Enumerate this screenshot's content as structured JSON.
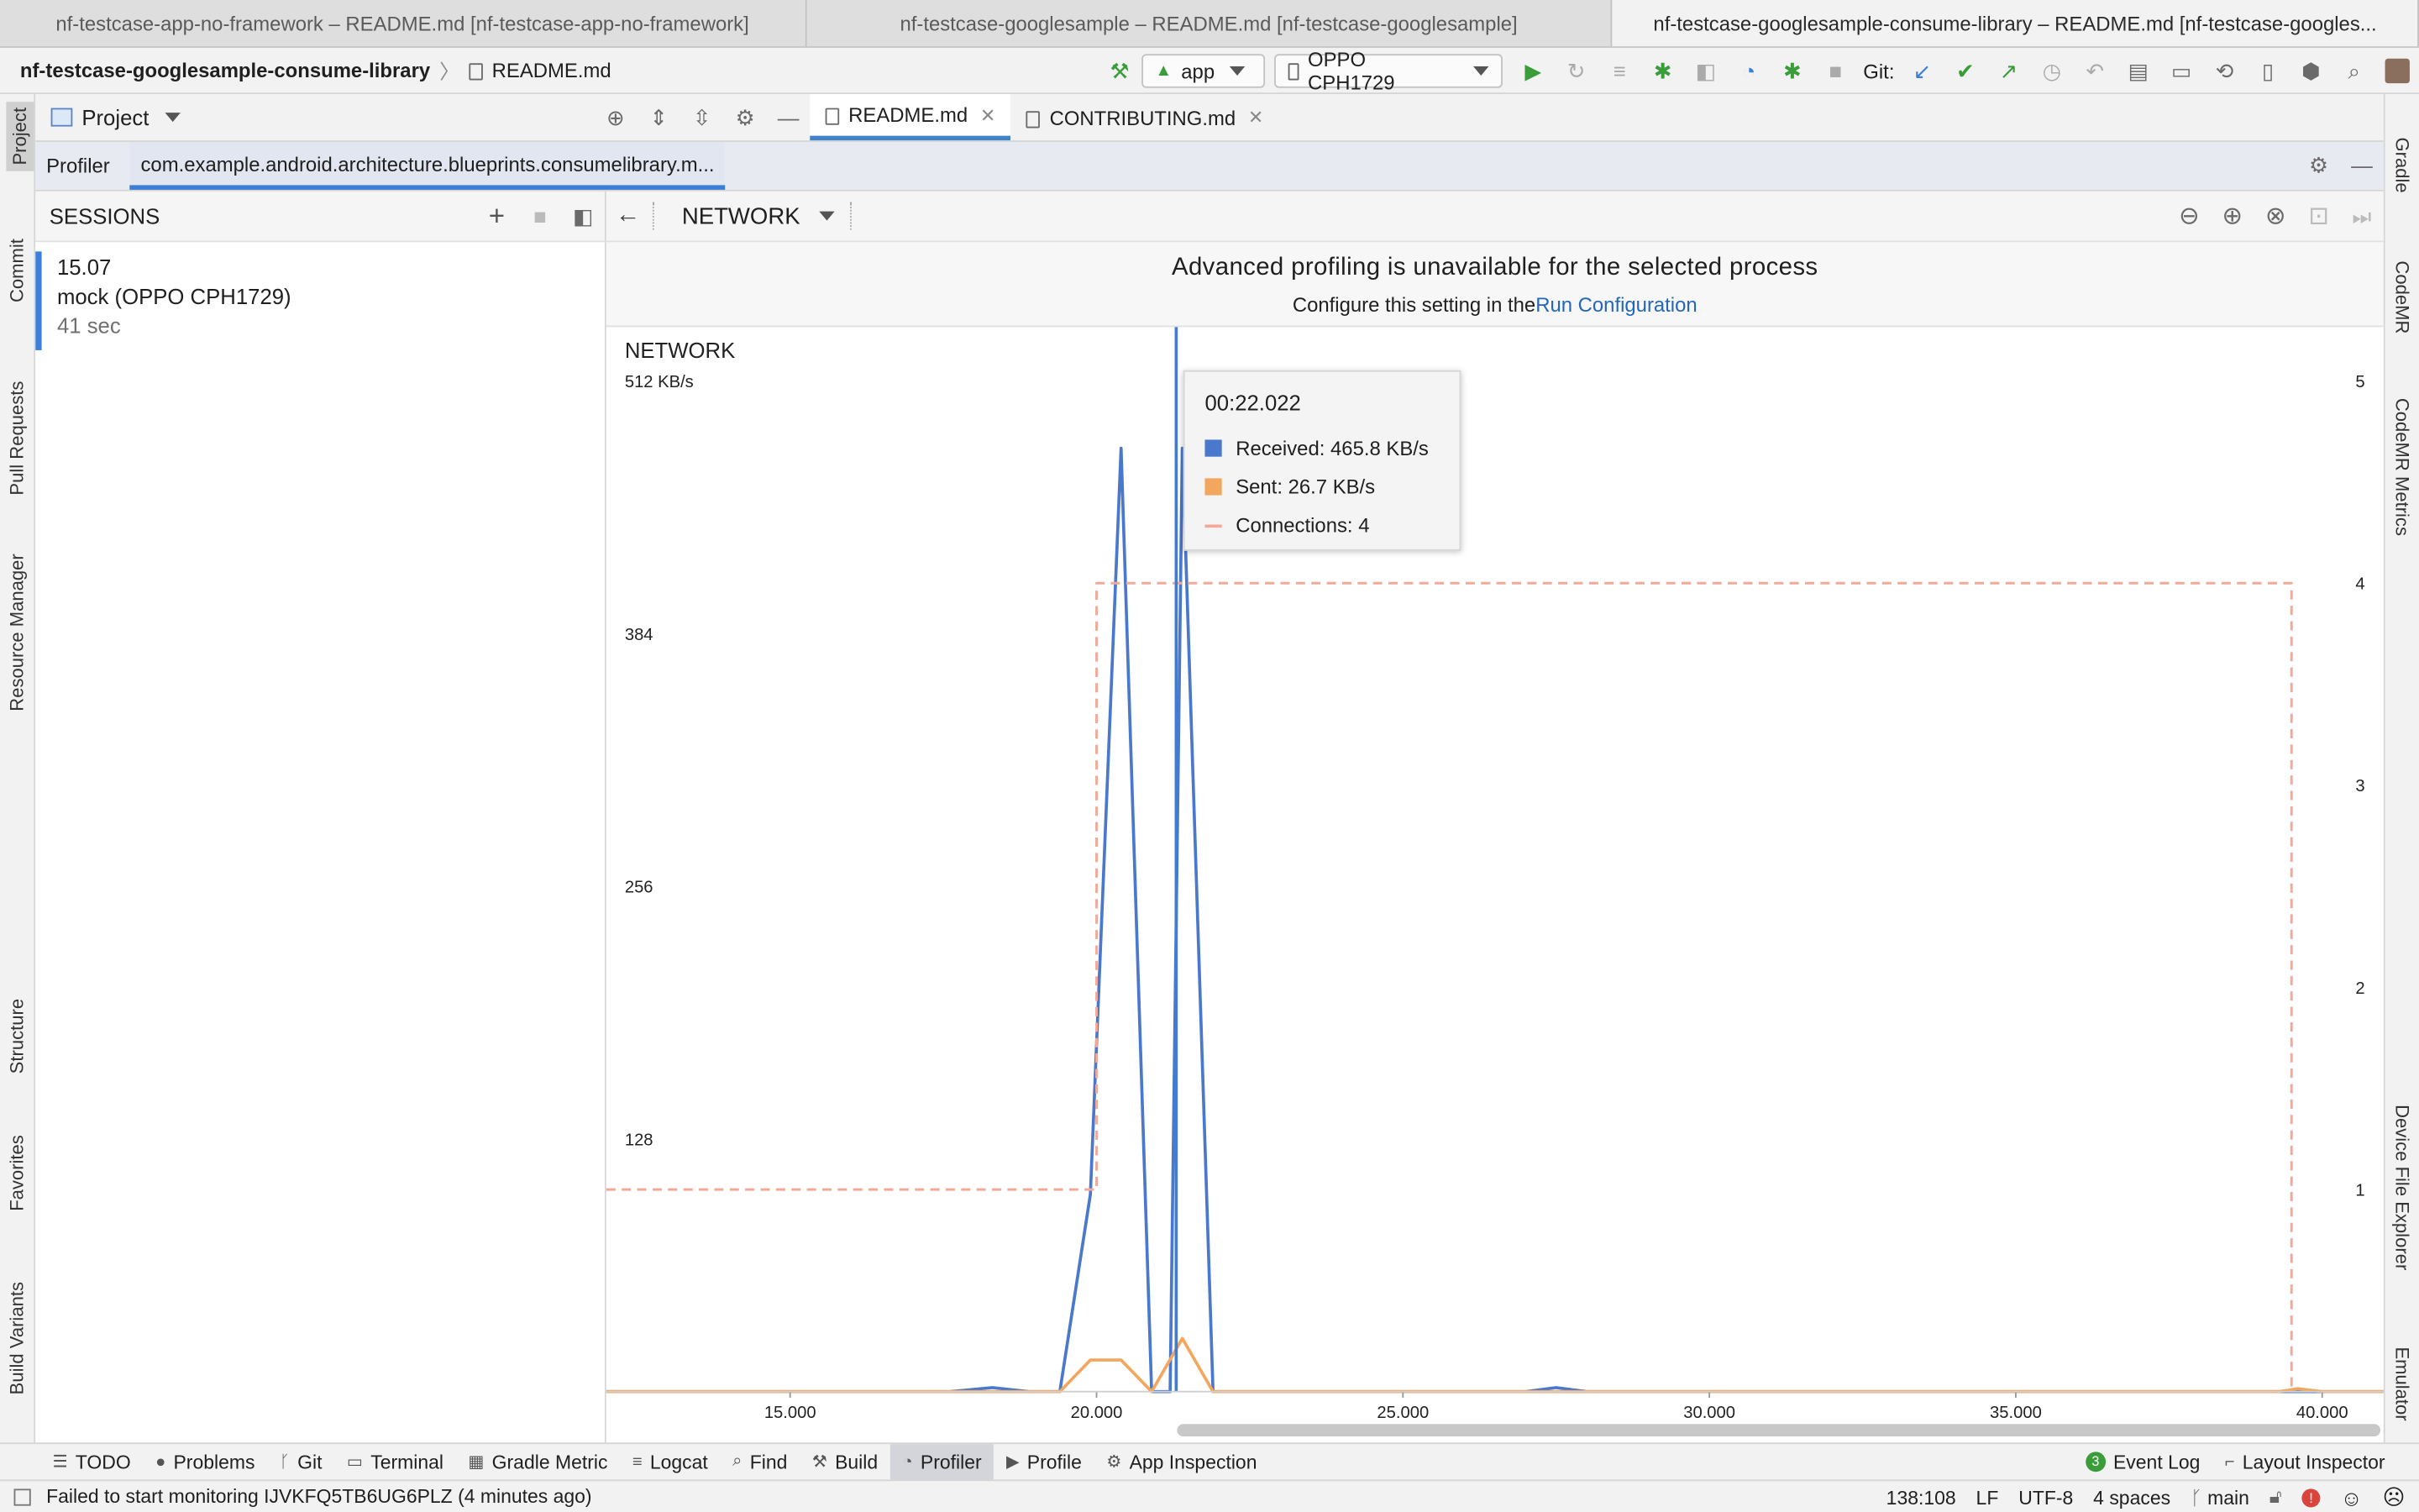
{
  "window_tabs": [
    "nf-testcase-app-no-framework – README.md [nf-testcase-app-no-framework]",
    "nf-testcase-googlesample – README.md [nf-testcase-googlesample]",
    "nf-testcase-googlesample-consume-library – README.md [nf-testcase-googles..."
  ],
  "toolbar": {
    "project_name": "nf-testcase-googlesample-consume-library",
    "file_name": "README.md",
    "run_config": "app",
    "device": "OPPO CPH1729",
    "git_label": "Git:"
  },
  "left_strip": [
    "Project",
    "Commit",
    "Pull Requests",
    "Resource Manager",
    "Structure",
    "Favorites",
    "Build Variants"
  ],
  "right_strip": [
    "Gradle",
    "CodeMR",
    "CodeMR Metrics",
    "Device File Explorer",
    "Emulator"
  ],
  "project_pane": {
    "title": "Project"
  },
  "editor_tabs": [
    {
      "label": "README.md",
      "active": true
    },
    {
      "label": "CONTRIBUTING.md",
      "active": false
    }
  ],
  "profiler": {
    "tab_label": "Profiler",
    "process_tab": "com.example.android.architecture.blueprints.consumelibrary.m...",
    "sessions_title": "SESSIONS",
    "session": {
      "time": "15.07",
      "name": "mock (OPPO CPH1729)",
      "duration": "41 sec"
    },
    "monitor_title": "NETWORK",
    "banner_title": "Advanced profiling is unavailable for the selected process",
    "banner_text": "Configure this setting in the",
    "banner_link": "Run Configuration"
  },
  "chart_data": {
    "type": "line",
    "title": "NETWORK",
    "unit_label": "512 KB/s",
    "y_ticks": [
      "384",
      "256",
      "128"
    ],
    "y_range_kbps": [
      0,
      512
    ],
    "y2_ticks": [
      "5",
      "4",
      "3",
      "2",
      "1"
    ],
    "y2_range": [
      0,
      5
    ],
    "x_ticks": [
      "15.000",
      "20.000",
      "25.000",
      "30.000",
      "35.000",
      "40.000"
    ],
    "x_range": [
      12.0,
      41.0
    ],
    "series": [
      {
        "name": "Received",
        "color": "#4a78cd",
        "points": [
          [
            12.0,
            0
          ],
          [
            17.6,
            0
          ],
          [
            18.3,
            2
          ],
          [
            18.9,
            0
          ],
          [
            19.4,
            0
          ],
          [
            19.9,
            100
          ],
          [
            20.4,
            478
          ],
          [
            20.9,
            0
          ],
          [
            21.2,
            0
          ],
          [
            21.4,
            478
          ],
          [
            21.9,
            0
          ],
          [
            27.0,
            0
          ],
          [
            27.5,
            2
          ],
          [
            28.0,
            0
          ],
          [
            41.0,
            0
          ]
        ]
      },
      {
        "name": "Sent",
        "color": "#f3a65e",
        "points": [
          [
            12.0,
            0
          ],
          [
            19.4,
            0
          ],
          [
            19.9,
            16
          ],
          [
            20.4,
            16
          ],
          [
            20.9,
            0
          ],
          [
            21.4,
            27
          ],
          [
            21.9,
            0
          ],
          [
            39.3,
            0
          ],
          [
            39.6,
            1.5
          ],
          [
            40.0,
            0
          ],
          [
            41.0,
            0
          ]
        ]
      },
      {
        "name": "Connections",
        "color": "#f2a99a",
        "dashed": true,
        "axis": "right",
        "steps": [
          [
            12.0,
            1
          ],
          [
            20.0,
            1
          ],
          [
            20.0,
            4
          ],
          [
            39.5,
            4
          ],
          [
            39.5,
            0
          ]
        ]
      }
    ],
    "cursor_x": 21.3,
    "tooltip": {
      "time": "00:22.022",
      "received": "Received: 465.8 KB/s",
      "sent": "Sent: 26.7 KB/s",
      "connections": "Connections: 4"
    },
    "grid": false
  },
  "bottom_tabs": [
    {
      "label": "TODO",
      "icon": "list-icon",
      "glyph": "☰"
    },
    {
      "label": "Problems",
      "icon": "warning-icon",
      "glyph": "●"
    },
    {
      "label": "Git",
      "icon": "branch-icon",
      "glyph": "ᚴ"
    },
    {
      "label": "Terminal",
      "icon": "terminal-icon",
      "glyph": "▭"
    },
    {
      "label": "Gradle Metric",
      "icon": "gradle-metric-icon",
      "glyph": "▦"
    },
    {
      "label": "Logcat",
      "icon": "logcat-icon",
      "glyph": "≡"
    },
    {
      "label": "Find",
      "icon": "find-icon",
      "glyph": "⌕"
    },
    {
      "label": "Build",
      "icon": "hammer-icon",
      "glyph": "⚒"
    },
    {
      "label": "Profiler",
      "icon": "profiler-icon",
      "glyph": "◔",
      "selected": true
    },
    {
      "label": "Profile",
      "icon": "play-icon",
      "glyph": "▶"
    },
    {
      "label": "App Inspection",
      "icon": "inspection-icon",
      "glyph": "⚙"
    }
  ],
  "bottom_right_tabs": [
    {
      "label": "Event Log",
      "badge": "3"
    },
    {
      "label": "Layout Inspector"
    }
  ],
  "status": {
    "message": "Failed to start monitoring IJVKFQ5TB6UG6PLZ (4 minutes ago)",
    "position": "138:108",
    "line_sep": "LF",
    "encoding": "UTF-8",
    "indent": "4 spaces",
    "branch": "main"
  },
  "colors": {
    "accent": "#3c7ed6",
    "received": "#4a78cd",
    "sent": "#f3a65e",
    "connections": "#f2a99a",
    "run_green": "#3a9d3a"
  }
}
